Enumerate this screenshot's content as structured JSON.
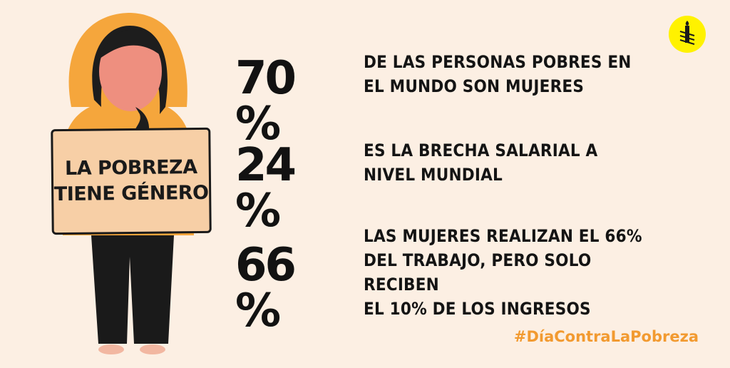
{
  "sign": {
    "line1": "LA POBREZA",
    "line2": "TIENE GÉNERO"
  },
  "stats": [
    {
      "value": "70 %",
      "lines": [
        "DE LAS PERSONAS POBRES EN",
        "EL MUNDO SON MUJERES"
      ]
    },
    {
      "value": "24 %",
      "lines": [
        "ES LA BRECHA SALARIAL A",
        "NIVEL MUNDIAL"
      ]
    },
    {
      "value": "66 %",
      "lines": [
        "LAS MUJERES REALIZAN EL 66%",
        "DEL TRABAJO, PERO SOLO RECIBEN",
        "EL 10% DE LOS INGRESOS"
      ]
    }
  ],
  "hashtag": "#DíaContraLaPobreza",
  "logo": {
    "icon": "candle-in-barbed-wire-icon",
    "color": "#fff200"
  },
  "colors": {
    "background": "#fcefe3",
    "hood": "#f5a63c",
    "skin": "#ee8f7f",
    "hair": "#1d1d1d",
    "sign": "#f7cfa6",
    "pants": "#1a1a1a",
    "hashtag": "#f29a30"
  }
}
